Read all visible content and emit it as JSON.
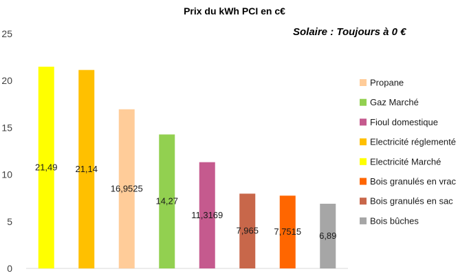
{
  "chart_data": {
    "type": "bar",
    "title": "Prix du kWh PCI en c€",
    "annotation": "Solaire : Toujours à 0 €",
    "ylim": [
      0,
      25
    ],
    "yticks": [
      0,
      5,
      10,
      15,
      20,
      25
    ],
    "grid": false,
    "legend_position": "right",
    "bars": [
      {
        "name": "Electricité Marché",
        "value": 21.49,
        "label": "21,49",
        "color": "#FFFF00"
      },
      {
        "name": "Electricité réglementé",
        "value": 21.14,
        "label": "21,14",
        "color": "#FFC000"
      },
      {
        "name": "Propane",
        "value": 16.9525,
        "label": "16,9525",
        "color": "#FFCC99"
      },
      {
        "name": "Gaz Marché",
        "value": 14.27,
        "label": "14,27",
        "color": "#92D050"
      },
      {
        "name": "Fioul domestique",
        "value": 11.3169,
        "label": "11,3169",
        "color": "#C55A8E"
      },
      {
        "name": "Bois granulés en sac",
        "value": 7.965,
        "label": "7,965",
        "color": "#C8674A"
      },
      {
        "name": "Bois granulés en vrac",
        "value": 7.7515,
        "label": "7,7515",
        "color": "#FF6600"
      },
      {
        "name": "Bois bûches",
        "value": 6.89,
        "label": "6,89",
        "color": "#A6A6A6"
      }
    ],
    "legend": [
      {
        "name": "Propane",
        "color": "#FFCC99"
      },
      {
        "name": "Gaz Marché",
        "color": "#92D050"
      },
      {
        "name": "Fioul domestique",
        "color": "#C55A8E"
      },
      {
        "name": "Electricité réglementé",
        "color": "#FFC000"
      },
      {
        "name": "Electricité Marché",
        "color": "#FFFF00"
      },
      {
        "name": "Bois granulés en vrac",
        "color": "#FF6600"
      },
      {
        "name": "Bois granulés en sac",
        "color": "#C8674A"
      },
      {
        "name": "Bois bûches",
        "color": "#A6A6A6"
      }
    ]
  }
}
